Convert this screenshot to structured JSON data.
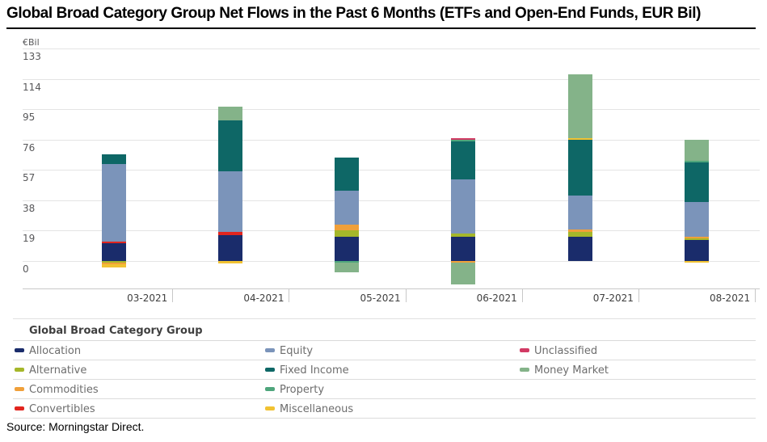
{
  "title": "Global Broad Category Group Net Flows in the Past 6 Months (ETFs and Open-End Funds, EUR Bil)",
  "source": "Source: Morningstar Direct.",
  "legend": {
    "title": "Global Broad Category Group",
    "items": [
      {
        "label": "Allocation",
        "color": "#1a2c6b"
      },
      {
        "label": "Alternative",
        "color": "#a5b72a"
      },
      {
        "label": "Commodities",
        "color": "#f0a03a"
      },
      {
        "label": "Convertibles",
        "color": "#e2251e"
      },
      {
        "label": "Equity",
        "color": "#7b94ba"
      },
      {
        "label": "Fixed Income",
        "color": "#0e6766"
      },
      {
        "label": "Property",
        "color": "#4fa67c"
      },
      {
        "label": "Miscellaneous",
        "color": "#f1c232"
      },
      {
        "label": "Unclassified",
        "color": "#d23a64"
      },
      {
        "label": "Money Market",
        "color": "#84b389"
      }
    ]
  },
  "chart_data": {
    "type": "bar",
    "stacked": true,
    "title": "Global Broad Category Group Net Flows in the Past 6 Months (ETFs and Open-End Funds, EUR Bil)",
    "unit_label": "€Bil",
    "xlabel": "",
    "ylabel": "€Bil",
    "grid": true,
    "legend_position": "bottom",
    "yticks": [
      133,
      114,
      95,
      76,
      57,
      38,
      19,
      0
    ],
    "ylim": [
      -17,
      140
    ],
    "categories": [
      "03-2021",
      "04-2021",
      "05-2021",
      "06-2021",
      "07-2021",
      "08-2021"
    ],
    "series": [
      {
        "name": "Allocation",
        "color": "#1a2c6b",
        "values": [
          11,
          16,
          15,
          15,
          15,
          13
        ]
      },
      {
        "name": "Alternative",
        "color": "#a5b72a",
        "values": [
          -1,
          0,
          4,
          2,
          3,
          1
        ]
      },
      {
        "name": "Commodities",
        "color": "#f0a03a",
        "values": [
          -1,
          0,
          4,
          -1,
          2,
          1
        ]
      },
      {
        "name": "Convertibles",
        "color": "#e2251e",
        "values": [
          1,
          2,
          0,
          0,
          0,
          0
        ]
      },
      {
        "name": "Equity",
        "color": "#7b94ba",
        "values": [
          49,
          38,
          21,
          34,
          21,
          22
        ]
      },
      {
        "name": "Fixed Income",
        "color": "#0e6766",
        "values": [
          6,
          32,
          21,
          24,
          35,
          25
        ]
      },
      {
        "name": "Property",
        "color": "#4fa67c",
        "values": [
          0,
          0,
          -1,
          1,
          0,
          1
        ]
      },
      {
        "name": "Miscellaneous",
        "color": "#f1c232",
        "values": [
          -2,
          -1.5,
          0,
          0,
          1,
          -1
        ]
      },
      {
        "name": "Unclassified",
        "color": "#d23a64",
        "values": [
          0,
          0,
          0,
          1,
          0,
          0
        ]
      },
      {
        "name": "Money Market",
        "color": "#84b389",
        "values": [
          0,
          9,
          -6,
          -13.5,
          40,
          13
        ]
      }
    ]
  }
}
